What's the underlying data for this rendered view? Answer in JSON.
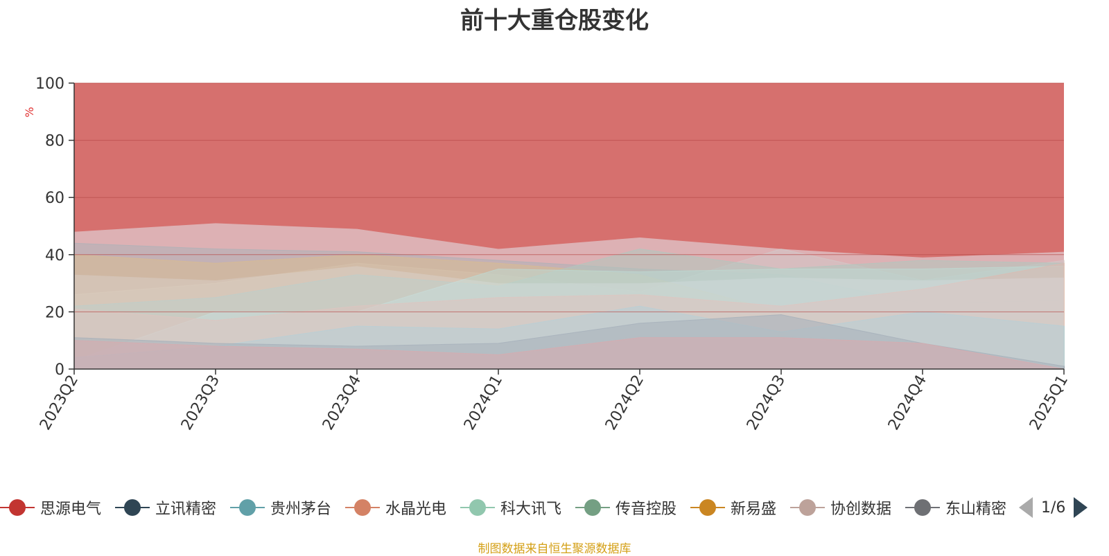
{
  "chart_data": {
    "type": "area",
    "title": "前十大重仓股变化",
    "ylabel": "%",
    "xlabel": "",
    "ylim": [
      0,
      100
    ],
    "yticks": [
      0,
      20,
      40,
      60,
      80,
      100
    ],
    "grid": true,
    "legend_position": "bottom",
    "categories": [
      "2023Q2",
      "2023Q3",
      "2023Q4",
      "2024Q1",
      "2024Q2",
      "2024Q3",
      "2024Q4",
      "2025Q1"
    ],
    "series": [
      {
        "name": "思源电气",
        "color": "#c23531",
        "values": [
          10,
          8,
          7,
          5,
          11,
          11,
          9,
          0
        ]
      },
      {
        "name": "立讯精密",
        "color": "#2f4554",
        "values": [
          11,
          9,
          8,
          9,
          16,
          19,
          9,
          1
        ]
      },
      {
        "name": "贵州茅台",
        "color": "#61a0a8",
        "values": [
          4,
          8,
          15,
          14,
          22,
          13,
          20,
          15
        ]
      },
      {
        "name": "水晶光电",
        "color": "#d48265",
        "values": [
          21,
          17,
          22,
          25,
          26,
          22,
          28,
          37
        ]
      },
      {
        "name": "科大讯飞",
        "color": "#91c7ae",
        "values": [
          3,
          20,
          20,
          35,
          34,
          35,
          35,
          36
        ]
      },
      {
        "name": "传音控股",
        "color": "#749f83",
        "values": [
          22,
          25,
          33,
          29,
          42,
          35,
          38,
          37
        ]
      },
      {
        "name": "新易盛",
        "color": "#ca8622",
        "values": [
          40,
          37,
          40,
          37,
          33,
          20,
          18,
          17
        ]
      },
      {
        "name": "协创数据",
        "color": "#bda29a",
        "values": [
          26,
          30,
          37,
          33,
          27,
          42,
          31,
          38
        ]
      },
      {
        "name": "东山精密",
        "color": "#6e7074",
        "values": [
          44,
          42,
          41,
          38,
          35,
          33,
          23,
          24
        ]
      }
    ]
  },
  "legend": {
    "items": [
      "思源电气",
      "立讯精密",
      "贵州茅台",
      "水晶光电",
      "科大讯飞",
      "传音控股",
      "新易盛",
      "协创数据",
      "东山精密"
    ],
    "page_indicator": "1/6"
  },
  "source_note": "制图数据来自恒生聚源数据库"
}
